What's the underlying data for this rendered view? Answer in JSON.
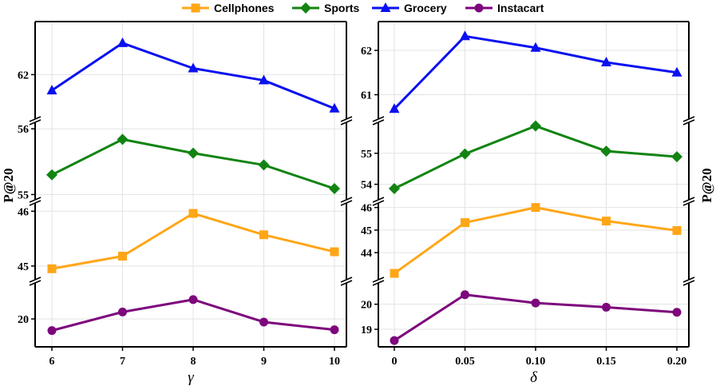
{
  "chart_data": {
    "type": "line",
    "ylabel": "P@20",
    "legend": {
      "placement": "top-center",
      "entries": [
        {
          "name": "Cellphones",
          "color": "#ffa617",
          "marker": "square"
        },
        {
          "name": "Sports",
          "color": "#128412",
          "marker": "diamond"
        },
        {
          "name": "Grocery",
          "color": "#0a10f0",
          "marker": "triangle"
        },
        {
          "name": "Instacart",
          "color": "#7d067d",
          "marker": "circle"
        }
      ]
    },
    "panels": [
      {
        "name": "gamma",
        "xlabel": "γ",
        "x": [
          "6",
          "7",
          "8",
          "9",
          "10"
        ],
        "series": {
          "Grocery": {
            "values": [
              61.45,
              63.1,
              62.22,
              61.8,
              60.82
            ],
            "ylim": [
              60.45,
              63.85
            ],
            "ticks": [
              "62"
            ]
          },
          "Sports": {
            "values": [
              55.3,
              55.84,
              55.63,
              55.45,
              55.09
            ],
            "ylim": [
              54.92,
              56.1
            ],
            "ticks": [
              "55",
              "56"
            ]
          },
          "Cellphones": {
            "values": [
              44.95,
              45.18,
              45.96,
              45.57,
              45.26
            ],
            "ylim": [
              44.75,
              46.15
            ],
            "ticks": [
              "45",
              "46"
            ]
          },
          "Instacart": {
            "values": [
              19.7,
              20.18,
              20.5,
              19.92,
              19.72
            ],
            "ylim": [
              19.28,
              20.93
            ],
            "ticks": [
              "20"
            ]
          }
        }
      },
      {
        "name": "delta",
        "xlabel": "δ",
        "x": [
          "0",
          "0.05",
          "0.10",
          "0.15",
          "0.20"
        ],
        "series": {
          "Grocery": {
            "values": [
              60.68,
              62.32,
              62.06,
              61.73,
              61.5
            ],
            "ylim": [
              60.45,
              62.65
            ],
            "ticks": [
              "61",
              "62"
            ]
          },
          "Sports": {
            "values": [
              53.86,
              54.98,
              55.88,
              55.07,
              54.89
            ],
            "ylim": [
              53.5,
              56.0
            ],
            "ticks": [
              "54",
              "55"
            ]
          },
          "Cellphones": {
            "values": [
              43.08,
              45.33,
              46.0,
              45.4,
              44.98
            ],
            "ylim": [
              42.8,
              46.2
            ],
            "ticks": [
              "44",
              "45",
              "46"
            ]
          },
          "Instacart": {
            "values": [
              18.55,
              20.38,
              20.05,
              19.88,
              19.68
            ],
            "ylim": [
              18.3,
              20.85
            ],
            "ticks": [
              "19",
              "20"
            ]
          }
        }
      }
    ]
  }
}
